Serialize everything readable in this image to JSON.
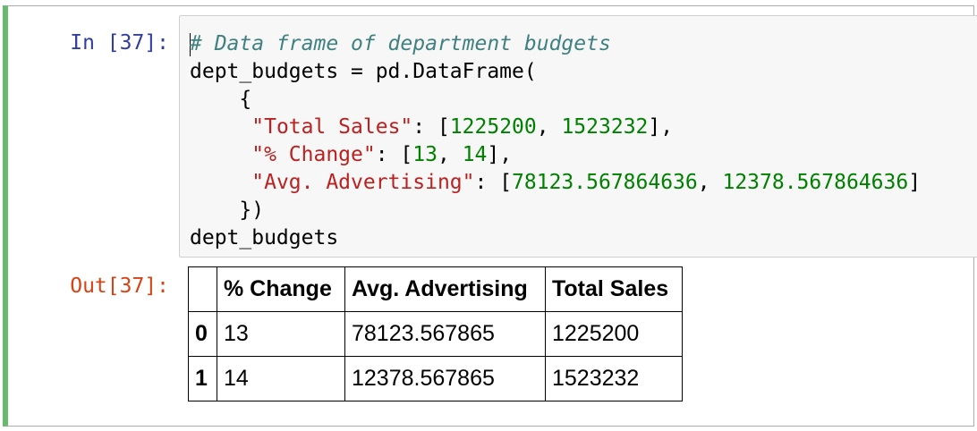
{
  "cell": {
    "in_prompt": "In [37]:",
    "out_prompt": "Out[37]:",
    "code": {
      "comment": "# Data frame of department budgets",
      "line2": "dept_budgets = pd.DataFrame(",
      "line3": "    {",
      "line4_key": "\"Total Sales\"",
      "line4_sep": ": [",
      "line4_v1": "1225200",
      "line4_mid": ", ",
      "line4_v2": "1523232",
      "line4_end": "],",
      "line5_key": "\"% Change\"",
      "line5_sep": ": [",
      "line5_v1": "13",
      "line5_mid": ", ",
      "line5_v2": "14",
      "line5_end": "],",
      "line6_key": "\"Avg. Advertising\"",
      "line6_sep": ": [",
      "line6_v1": "78123.567864636",
      "line6_mid": ", ",
      "line6_v2": "12378.567864636",
      "line6_end": "]",
      "line7": "    })",
      "line8": "dept_budgets"
    },
    "output_table": {
      "columns": [
        "",
        "% Change",
        "Avg. Advertising",
        "Total Sales"
      ],
      "rows": [
        {
          "index": "0",
          "change": "13",
          "advertising": "78123.567865",
          "sales": "1225200"
        },
        {
          "index": "1",
          "change": "14",
          "advertising": "12378.567865",
          "sales": "1523232"
        }
      ]
    }
  },
  "colors": {
    "cell_border_selected": "#66bb6a",
    "in_prompt": "#303f9f",
    "out_prompt": "#d84315",
    "comment": "#408080",
    "string": "#ba2121",
    "number": "#008000"
  }
}
